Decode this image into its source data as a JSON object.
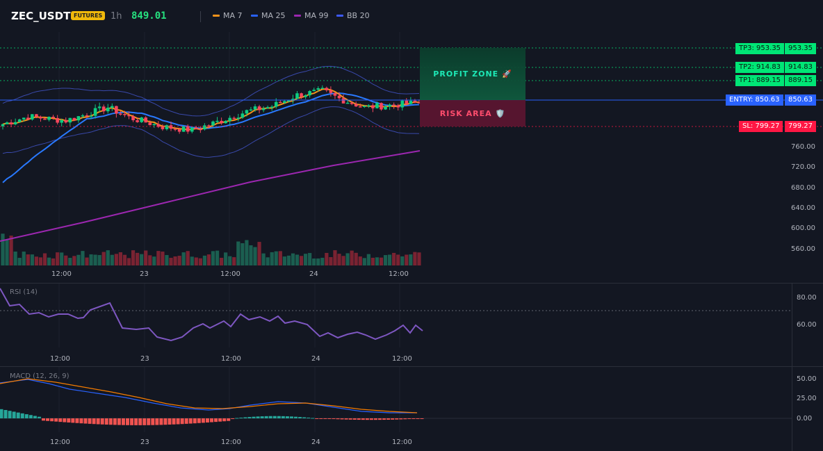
{
  "header": {
    "symbol": "ZEC_USDT",
    "badge": "FUTURES",
    "timeframe": "1h",
    "price": "849.01",
    "indicators": [
      {
        "label": "MA 7",
        "color": "#f7931a"
      },
      {
        "label": "MA 25",
        "color": "#2962ff"
      },
      {
        "label": "MA 99",
        "color": "#9c27b0"
      },
      {
        "label": "BB 20",
        "color": "#3d5afe"
      }
    ]
  },
  "levels": {
    "tp3": {
      "label": "TP3: 953.35",
      "price": "953.35"
    },
    "tp2": {
      "label": "TP2: 914.83",
      "price": "914.83"
    },
    "tp1": {
      "label": "TP1: 889.15",
      "price": "889.15"
    },
    "entry": {
      "label": "ENTRY: 850.63",
      "price": "850.63"
    },
    "sl": {
      "label": "SL: 799.27",
      "price": "799.27"
    }
  },
  "zones": {
    "profit": "PROFIT ZONE 🚀",
    "risk": "RISK AREA 🛡️"
  },
  "price_axis": [
    "760.00",
    "720.00",
    "680.00",
    "640.00",
    "600.00",
    "560.00"
  ],
  "time_axis": [
    "12:00",
    "23",
    "12:00",
    "24",
    "12:00"
  ],
  "rsi": {
    "title": "RSI (14)",
    "axis": [
      "80.00",
      "60.00"
    ]
  },
  "macd": {
    "title": "MACD (12, 26, 9)",
    "axis": [
      "50.00",
      "25.00",
      "0.00"
    ]
  },
  "colors": {
    "up": "#26a69a",
    "up_bright": "#0ecb81",
    "down": "#f6465d",
    "tp": "#00e676",
    "entry": "#2962ff",
    "sl": "#ff1744",
    "rsi": "#7e57c2",
    "macd": "#2962ff",
    "signal": "#f57c00"
  }
}
